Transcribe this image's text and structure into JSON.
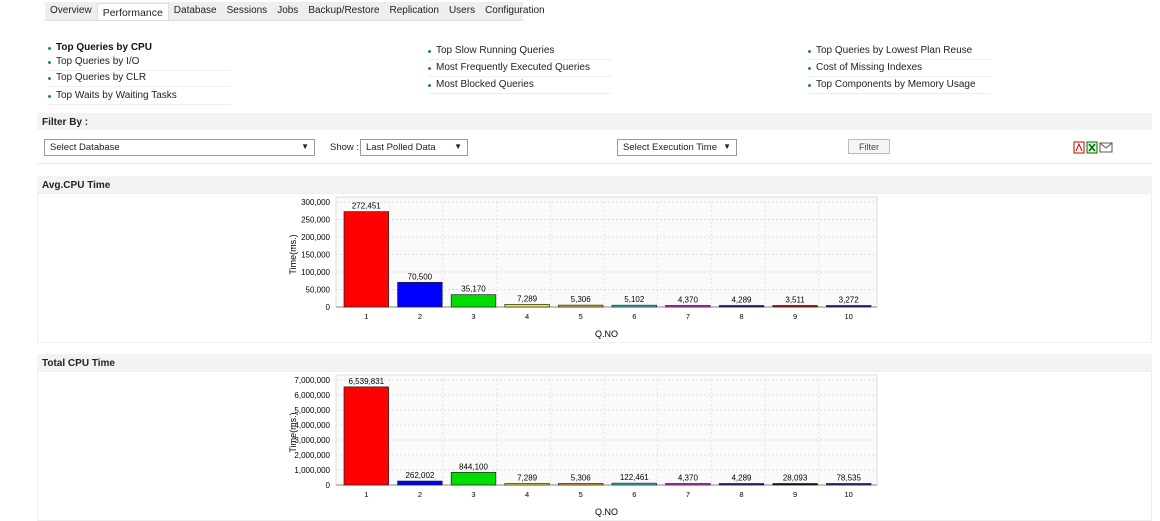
{
  "tabs": [
    "Overview",
    "Performance",
    "Database",
    "Sessions",
    "Jobs",
    "Backup/Restore",
    "Replication",
    "Users",
    "Configuration"
  ],
  "active_tab": "Performance",
  "links": {
    "col1": [
      "Top Queries by CPU",
      "Top Queries by I/O",
      "Top Queries by CLR",
      "Top Waits by Waiting Tasks"
    ],
    "col2": [
      "Top Slow Running Queries",
      "Most Frequently Executed Queries",
      "Most Blocked Queries"
    ],
    "col3": [
      "Top Queries by Lowest Plan Reuse",
      "Cost of Missing Indexes",
      "Top Components by Memory Usage"
    ]
  },
  "filter": {
    "title": "Filter By :",
    "database": "Select Database",
    "show_label": "Show :",
    "show_value": "Last Polled Data",
    "exec_time": "Select Execution Time",
    "button": "Filter",
    "dropdown_arrow": "▼"
  },
  "export_icons": [
    "pdf-icon",
    "excel-icon",
    "email-icon"
  ],
  "sections": {
    "avg": "Avg.CPU Time",
    "total": "Total CPU Time"
  },
  "chart_data": [
    {
      "type": "bar",
      "title": "Avg.CPU Time",
      "xlabel": "Q.NO",
      "ylabel": "Time(ms.)",
      "categories": [
        "1",
        "2",
        "3",
        "4",
        "5",
        "6",
        "7",
        "8",
        "9",
        "10"
      ],
      "values": [
        272451,
        70500,
        35170,
        7289,
        5306,
        5102,
        4370,
        4289,
        3511,
        3272
      ],
      "labels": [
        "272,451",
        "70,500",
        "35,170",
        "7,289",
        "5,306",
        "5,102",
        "4,370",
        "4,289",
        "3,511",
        "3,272"
      ],
      "ylim": [
        0,
        300000
      ],
      "yticks": [
        "0",
        "50,000",
        "100,000",
        "150,000",
        "200,000",
        "250,000",
        "300,000"
      ],
      "grid": true,
      "colors": [
        "#ff0000",
        "#0000ff",
        "#00dd00",
        "#eeee44",
        "#e8b040",
        "#40c0c0",
        "#c040c0",
        "#202080",
        "#a01010",
        "#202080"
      ]
    },
    {
      "type": "bar",
      "title": "Total CPU Time",
      "xlabel": "Q.NO",
      "ylabel": "Time(ms.)",
      "categories": [
        "1",
        "2",
        "3",
        "4",
        "5",
        "6",
        "7",
        "8",
        "9",
        "10"
      ],
      "values": [
        6539831,
        262002,
        844100,
        7289,
        5306,
        122461,
        4370,
        4289,
        28093,
        78535
      ],
      "labels": [
        "6,539,831",
        "262,002",
        "844,100",
        "7,289",
        "5,306",
        "122,461",
        "4,370",
        "4,289",
        "28,093",
        "78,535"
      ],
      "ylim": [
        0,
        7000000
      ],
      "yticks": [
        "0",
        "1,000,000",
        "2,000,000",
        "3,000,000",
        "4,000,000",
        "5,000,000",
        "6,000,000",
        "7,000,000"
      ],
      "grid": true,
      "colors": [
        "#ff0000",
        "#0000ff",
        "#00dd00",
        "#eeee44",
        "#e8b040",
        "#40c0c0",
        "#c040c0",
        "#202080",
        "#101010",
        "#202080"
      ]
    }
  ]
}
